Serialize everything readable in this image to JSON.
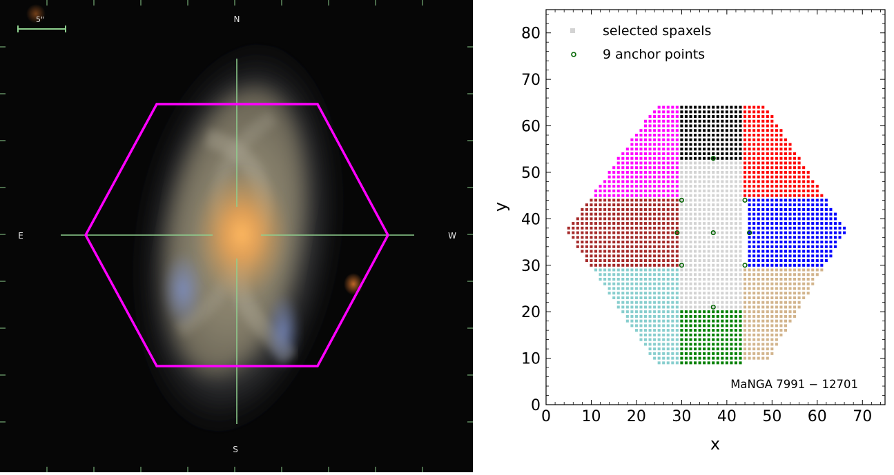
{
  "image_panel": {
    "scale_label": "5\"",
    "compass": {
      "north": "N",
      "south": "S",
      "east": "E",
      "west": "W"
    },
    "hexagon_color": "#ff00ff",
    "crosshair_color": "#8fd08f"
  },
  "chart_data": {
    "type": "scatter",
    "xlabel": "x",
    "ylabel": "y",
    "xlim": [
      0,
      75
    ],
    "ylim": [
      0,
      85
    ],
    "xticks": [
      0,
      10,
      20,
      30,
      40,
      50,
      60,
      70
    ],
    "yticks": [
      0,
      10,
      20,
      30,
      40,
      50,
      60,
      70,
      80
    ],
    "legend_position": "top-left",
    "legend": [
      "selected spaxels",
      "9 anchor points"
    ],
    "annotation": "MaNGA 7991 − 12701",
    "anchor_points": {
      "x": [
        37,
        30,
        44,
        29,
        37,
        45,
        30,
        44,
        37
      ],
      "y": [
        53,
        44,
        44,
        37,
        37,
        37,
        30,
        30,
        21
      ]
    },
    "regions": [
      {
        "color": "#d3d3d3",
        "x_range": [
          30,
          43
        ],
        "y_range": [
          21,
          52
        ]
      },
      {
        "color": "#ff00ff",
        "x_range": [
          9,
          29
        ],
        "y_range": [
          45,
          64
        ]
      },
      {
        "color": "#000000",
        "x_range": [
          30,
          43
        ],
        "y_range": [
          53,
          64
        ]
      },
      {
        "color": "#ff0000",
        "x_range": [
          44,
          63
        ],
        "y_range": [
          45,
          64
        ]
      },
      {
        "color": "#a52a2a",
        "x_range": [
          5,
          29
        ],
        "y_range": [
          30,
          44
        ]
      },
      {
        "color": "#0000ff",
        "x_range": [
          45,
          67
        ],
        "y_range": [
          30,
          44
        ]
      },
      {
        "color": "#87cece",
        "x_range": [
          10,
          29
        ],
        "y_range": [
          9,
          29
        ]
      },
      {
        "color": "#008000",
        "x_range": [
          30,
          43
        ],
        "y_range": [
          9,
          20
        ]
      },
      {
        "color": "#d2b48c",
        "x_range": [
          44,
          64
        ],
        "y_range": [
          10,
          29
        ]
      }
    ],
    "footprint_hexagon": [
      [
        25,
        65
      ],
      [
        49,
        65
      ],
      [
        67,
        38
      ],
      [
        49,
        9
      ],
      [
        25,
        9
      ],
      [
        5,
        38
      ]
    ],
    "anchor_color": "#006400"
  }
}
